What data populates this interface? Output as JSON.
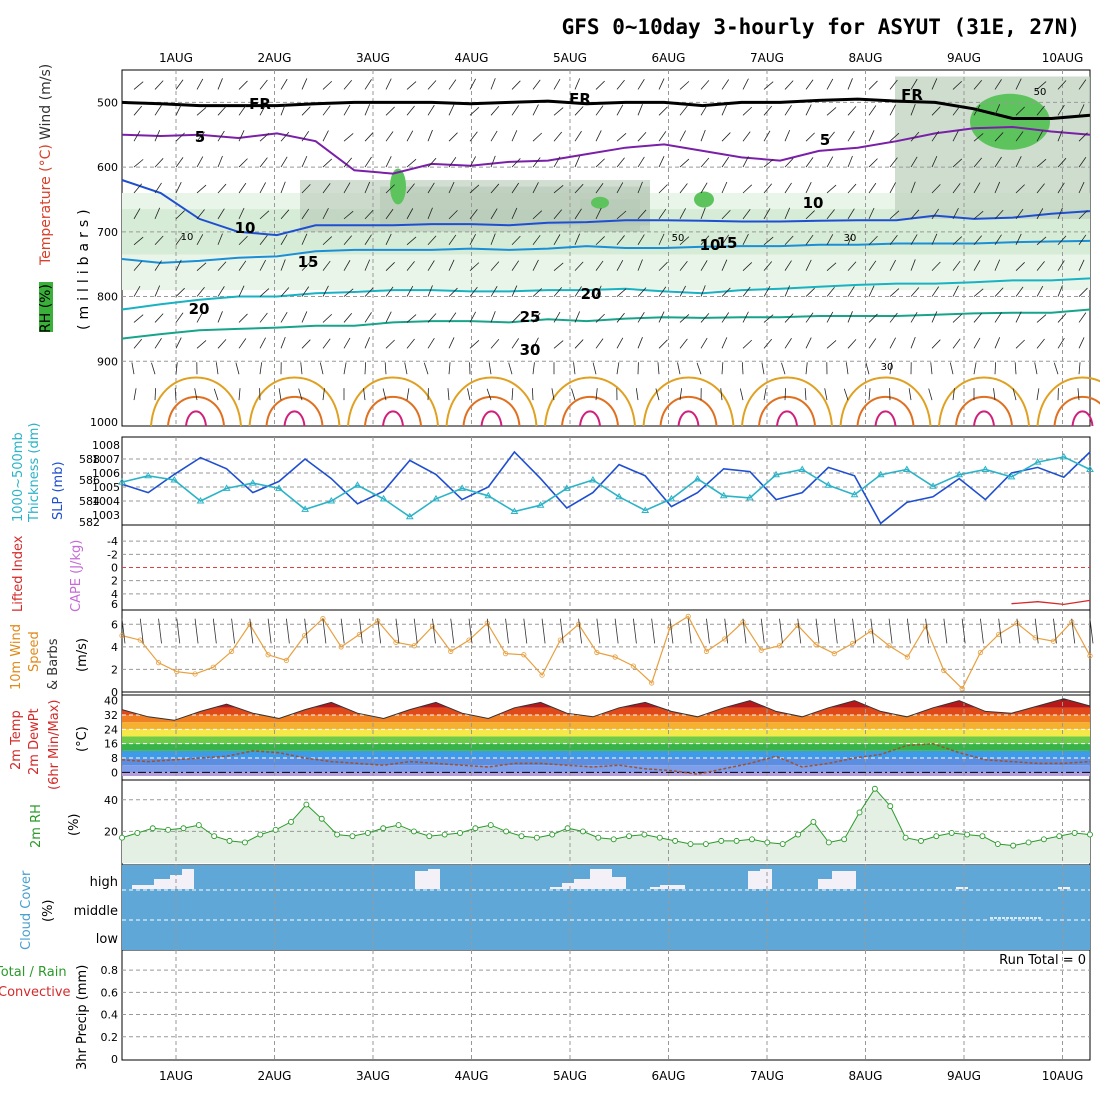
{
  "title": "GFS 0~10day 3-hourly for ASYUT (31E, 27N)",
  "dates": [
    "1AUG",
    "2AUG",
    "3AUG",
    "4AUG",
    "5AUG",
    "6AUG",
    "7AUG",
    "8AUG",
    "9AUG",
    "10AUG"
  ],
  "colors": {
    "temp_lines": "#7a1fa8",
    "blue": "#1f4fd1",
    "cyan": "#2bb3c7",
    "orange": "#e08a1a",
    "green": "#2a9a2a",
    "cloud": "#5fa7d6",
    "red": "#d42a2a"
  },
  "chart_data": [
    {
      "type": "line",
      "panel": "upper-air",
      "ylabel_parts": [
        "RH (%)",
        "Temperature (°C)",
        "Wind (m/s)",
        "(millibars)"
      ],
      "yticks": [
        "500",
        "600",
        "700",
        "800",
        "900",
        "1000"
      ],
      "ylim": [
        1000,
        450
      ],
      "contour_labels": [
        "FR",
        "FR",
        "FR",
        "5",
        "5",
        "10",
        "10",
        "10",
        "15",
        "15",
        "20",
        "20",
        "25",
        "30",
        "10",
        "50",
        "30",
        "30",
        "50"
      ],
      "series": [
        {
          "name": "5",
          "values": [
            550,
            552,
            550,
            555,
            548,
            560,
            605,
            610,
            595,
            598,
            592,
            590,
            580,
            570,
            565,
            575,
            585,
            590,
            575,
            570,
            560,
            548,
            540,
            538,
            545,
            550
          ]
        },
        {
          "name": "10",
          "values": [
            620,
            640,
            680,
            700,
            705,
            690,
            690,
            690,
            688,
            688,
            690,
            686,
            685,
            682,
            682,
            683,
            684,
            684,
            683,
            682,
            682,
            675,
            680,
            678,
            672,
            668
          ]
        },
        {
          "name": "15",
          "values": [
            742,
            748,
            745,
            740,
            738,
            730,
            728,
            728,
            728,
            726,
            728,
            726,
            722,
            725,
            725,
            723,
            722,
            722,
            720,
            720,
            718,
            718,
            718,
            716,
            715,
            714
          ]
        },
        {
          "name": "20",
          "values": [
            820,
            812,
            805,
            800,
            800,
            795,
            793,
            790,
            790,
            792,
            792,
            790,
            790,
            788,
            792,
            795,
            790,
            788,
            785,
            782,
            780,
            780,
            778,
            775,
            775,
            772
          ]
        },
        {
          "name": "25",
          "values": [
            865,
            858,
            852,
            850,
            848,
            845,
            845,
            840,
            838,
            838,
            840,
            835,
            838,
            834,
            832,
            833,
            832,
            832,
            830,
            830,
            830,
            828,
            826,
            825,
            825,
            820
          ]
        },
        {
          "name": "FR",
          "values": [
            500,
            502,
            505,
            505,
            505,
            502,
            500,
            500,
            500,
            502,
            500,
            498,
            502,
            500,
            500,
            505,
            500,
            500,
            497,
            495,
            498,
            500,
            510,
            525,
            525,
            520
          ]
        }
      ]
    },
    {
      "type": "line",
      "panel": "slp-thickness",
      "ylabel_parts": [
        "1000~500mb",
        "Thickness (dm)",
        "SLP (mb)"
      ],
      "yticks_left": [
        "582",
        "584",
        "586",
        "588"
      ],
      "yticks_right": [
        "1003",
        "1004",
        "1005",
        "1006",
        "1007",
        "1008"
      ],
      "series": [
        {
          "name": "SLP (mb)",
          "values": [
            1005.2,
            1004.6,
            1005.9,
            1007.1,
            1006.3,
            1004.6,
            1005.4,
            1007.0,
            1005.6,
            1003.8,
            1004.7,
            1006.9,
            1005.9,
            1004.1,
            1005.0,
            1007.5,
            1005.6,
            1003.5,
            1004.6,
            1006.6,
            1005.8,
            1003.6,
            1004.6,
            1006.3,
            1006.1,
            1004.1,
            1004.6,
            1006.4,
            1005.8,
            1002.4,
            1003.9,
            1004.3,
            1005.6,
            1004.1,
            1006.0,
            1006.4,
            1005.7,
            1007.5
          ]
        },
        {
          "name": "Thickness (dm)",
          "values": [
            585.8,
            586.4,
            586.0,
            584.0,
            585.2,
            585.7,
            585.2,
            583.2,
            584.0,
            585.5,
            584.2,
            582.5,
            584.2,
            585.2,
            584.5,
            583.0,
            583.6,
            585.2,
            586.0,
            584.4,
            583.1,
            584.2,
            586.1,
            584.5,
            584.3,
            586.5,
            587.0,
            585.5,
            584.6,
            586.5,
            587.0,
            585.4,
            586.5,
            587.0,
            586.3,
            587.7,
            588.2,
            587.0
          ]
        }
      ]
    },
    {
      "type": "line",
      "panel": "lifted-index-cape",
      "ylabel_parts": [
        "Lifted Index",
        "CAPE (J/kg)"
      ],
      "yticks": [
        "-4",
        "-2",
        "0",
        "2",
        "4",
        "6"
      ],
      "series": [
        {
          "name": "Lifted Index",
          "values": [
            null,
            null,
            null,
            null,
            null,
            null,
            null,
            null,
            null,
            null,
            null,
            null,
            null,
            null,
            null,
            null,
            null,
            null,
            null,
            null,
            null,
            null,
            null,
            null,
            null,
            null,
            null,
            null,
            null,
            null,
            null,
            null,
            null,
            null,
            5.5,
            5.2,
            5.6,
            5.0
          ]
        }
      ]
    },
    {
      "type": "line",
      "panel": "10m-wind",
      "ylabel_parts": [
        "10m Wind",
        "Speed",
        "& Barbs",
        "(m/s)"
      ],
      "yticks": [
        "0",
        "2",
        "4",
        "6"
      ],
      "ylim": [
        0,
        7
      ],
      "series": [
        {
          "name": "10m Wind Speed",
          "values": [
            5.0,
            4.6,
            2.6,
            1.8,
            1.6,
            2.2,
            3.6,
            6.0,
            3.3,
            2.8,
            5.0,
            6.5,
            4.0,
            5.1,
            6.3,
            4.4,
            4.1,
            5.8,
            3.6,
            4.6,
            6.1,
            3.4,
            3.3,
            1.5,
            4.6,
            6.0,
            3.5,
            3.1,
            2.3,
            0.8,
            5.7,
            6.7,
            3.6,
            4.7,
            6.2,
            3.7,
            4.1,
            5.9,
            4.2,
            3.4,
            4.3,
            5.4,
            4.1,
            3.1,
            5.8,
            1.9,
            0.3,
            3.5,
            5.1,
            6.1,
            4.8,
            4.5,
            6.2,
            3.2
          ]
        }
      ]
    },
    {
      "type": "area",
      "panel": "2m-temp",
      "ylabel_parts": [
        "2m Temp",
        "2m DewPt",
        "(6hr Min/Max)",
        "(°C)"
      ],
      "yticks": [
        "0",
        "8",
        "16",
        "24",
        "32",
        "40"
      ],
      "ylim": [
        -2,
        42
      ],
      "series": [
        {
          "name": "2m Temp",
          "values": [
            35,
            31,
            29,
            34,
            38,
            33,
            30,
            35,
            39,
            33,
            30,
            35,
            39,
            33,
            30,
            36,
            39,
            33,
            31,
            36,
            39,
            34,
            31,
            36,
            40,
            34,
            31,
            36,
            40,
            34,
            31,
            36,
            40,
            34,
            33,
            37,
            41,
            37
          ]
        },
        {
          "name": "2m DewPt",
          "values": [
            7,
            6,
            7,
            8,
            9,
            12,
            11,
            8,
            6,
            5,
            4,
            6,
            5,
            4,
            3,
            5,
            5,
            4,
            3,
            4,
            2,
            1,
            -1,
            2,
            5,
            9,
            3,
            5,
            8,
            10,
            15,
            16,
            11,
            7,
            6,
            5,
            5,
            6
          ]
        }
      ]
    },
    {
      "type": "area",
      "panel": "2m-rh",
      "ylabel_parts": [
        "2m RH",
        "(%)"
      ],
      "yticks": [
        "20",
        "40"
      ],
      "ylim": [
        0,
        50
      ],
      "series": [
        {
          "name": "2m RH",
          "values": [
            16,
            19,
            22,
            21,
            22,
            24,
            17,
            14,
            13,
            18,
            21,
            26,
            37,
            28,
            18,
            17,
            19,
            22,
            24,
            20,
            17,
            18,
            19,
            22,
            24,
            20,
            17,
            16,
            18,
            22,
            20,
            16,
            15,
            17,
            18,
            16,
            14,
            12,
            12,
            14,
            14,
            15,
            13,
            12,
            18,
            26,
            13,
            15,
            32,
            47,
            36,
            16,
            14,
            17,
            19,
            18,
            17,
            12,
            11,
            13,
            15,
            17,
            19,
            18
          ]
        }
      ]
    },
    {
      "type": "bar",
      "panel": "cloud-cover",
      "ylabel_parts": [
        "Cloud Cover",
        "(%)"
      ],
      "levels": [
        "high",
        "middle",
        "low"
      ],
      "series": [
        {
          "name": "high",
          "values": [
            0,
            0,
            0,
            0,
            0,
            10,
            30,
            40,
            60,
            70,
            0,
            0,
            0,
            0,
            0,
            0,
            0,
            0,
            0,
            0,
            0,
            0,
            0,
            0,
            0,
            0,
            0,
            0,
            0,
            0,
            0,
            0,
            0,
            0,
            0,
            0,
            0,
            0,
            0,
            0,
            0,
            0,
            0,
            0,
            0,
            0,
            0,
            0,
            0,
            0,
            0,
            50,
            0,
            0,
            0,
            0,
            0,
            0,
            0,
            0,
            0,
            0,
            0,
            0,
            0,
            0,
            0,
            0,
            0,
            0,
            0,
            0,
            0,
            0,
            0,
            0,
            0,
            0,
            0,
            0,
            0,
            0,
            0,
            0,
            0,
            0,
            0,
            0,
            0,
            0,
            0,
            0,
            0,
            0,
            0,
            0,
            0,
            0,
            0,
            0,
            0
          ]
        },
        {
          "name": "middle",
          "values": [
            0,
            0,
            0,
            0,
            0,
            0,
            0,
            0,
            0,
            0,
            0,
            0,
            0,
            0,
            0,
            0,
            0,
            0,
            0,
            0,
            0,
            0,
            0,
            0,
            0,
            0,
            0,
            0,
            0,
            0,
            0,
            0,
            0,
            0,
            0,
            0,
            0,
            0,
            0,
            0,
            0,
            0,
            0,
            0,
            0,
            0,
            0,
            0,
            0,
            0,
            0,
            0,
            0,
            0,
            0,
            0,
            0,
            0,
            0,
            0,
            0,
            0,
            0,
            0,
            0,
            0,
            0,
            0,
            0,
            0,
            0,
            0,
            0,
            0,
            0,
            0,
            0,
            0,
            0,
            0,
            0,
            0,
            0,
            0,
            0,
            0,
            0,
            0,
            0,
            0,
            0,
            0,
            0,
            0,
            0,
            0,
            0,
            0,
            0,
            0,
            0
          ]
        }
      ]
    },
    {
      "type": "bar",
      "panel": "3hr-precip",
      "ylabel_parts": [
        "Total / Rain",
        "Convective",
        "3hr Precip (mm)"
      ],
      "yticks": [
        "0",
        "0.2",
        "0.4",
        "0.6",
        "0.8"
      ],
      "ylim": [
        0,
        0.9
      ],
      "annotation": "Run Total = 0",
      "series": [
        {
          "name": "Total / Rain",
          "values": []
        },
        {
          "name": "Convective",
          "values": []
        }
      ]
    }
  ]
}
